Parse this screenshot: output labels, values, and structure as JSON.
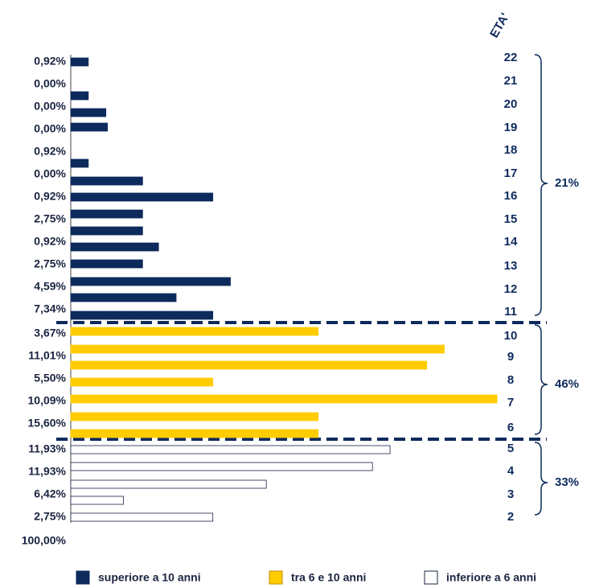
{
  "chart_data": {
    "type": "bar",
    "title": "ETA'",
    "row_labels": [
      "0,92%",
      "0,00%",
      "0,00%",
      "0,00%",
      "0,92%",
      "0,00%",
      "0,92%",
      "2,75%",
      "0,92%",
      "2,75%",
      "4,59%",
      "7,34%",
      "3,67%",
      "11,01%",
      "5,50%",
      "10,09%",
      "15,60%",
      "11,93%",
      "11,93%",
      "6,42%",
      "2,75%",
      "100,00%"
    ],
    "age_labels": [
      "22",
      "21",
      "20",
      "19",
      "18",
      "17",
      "16",
      "15",
      "14",
      "13",
      "12",
      "11",
      "10",
      "9",
      "8",
      "7",
      "6",
      "5",
      "4",
      "3",
      "2"
    ],
    "xlim": [
      0,
      540
    ],
    "series": [
      {
        "name": "superiore a 10 anni",
        "color": "#0d2a5c",
        "share": "21%",
        "values": [
          22,
          22,
          44,
          46,
          22,
          90,
          178,
          90,
          90,
          110,
          90,
          200,
          132,
          178
        ]
      },
      {
        "name": "tra 6 e 10 anni",
        "color": "#ffcc00",
        "share": "46%",
        "values": [
          310,
          468,
          446,
          178,
          534,
          310,
          310
        ]
      },
      {
        "name": "inferiore a 6 anni",
        "color": "#ffffff",
        "share": "33%",
        "values": [
          400,
          378,
          245,
          66,
          178
        ]
      }
    ]
  }
}
